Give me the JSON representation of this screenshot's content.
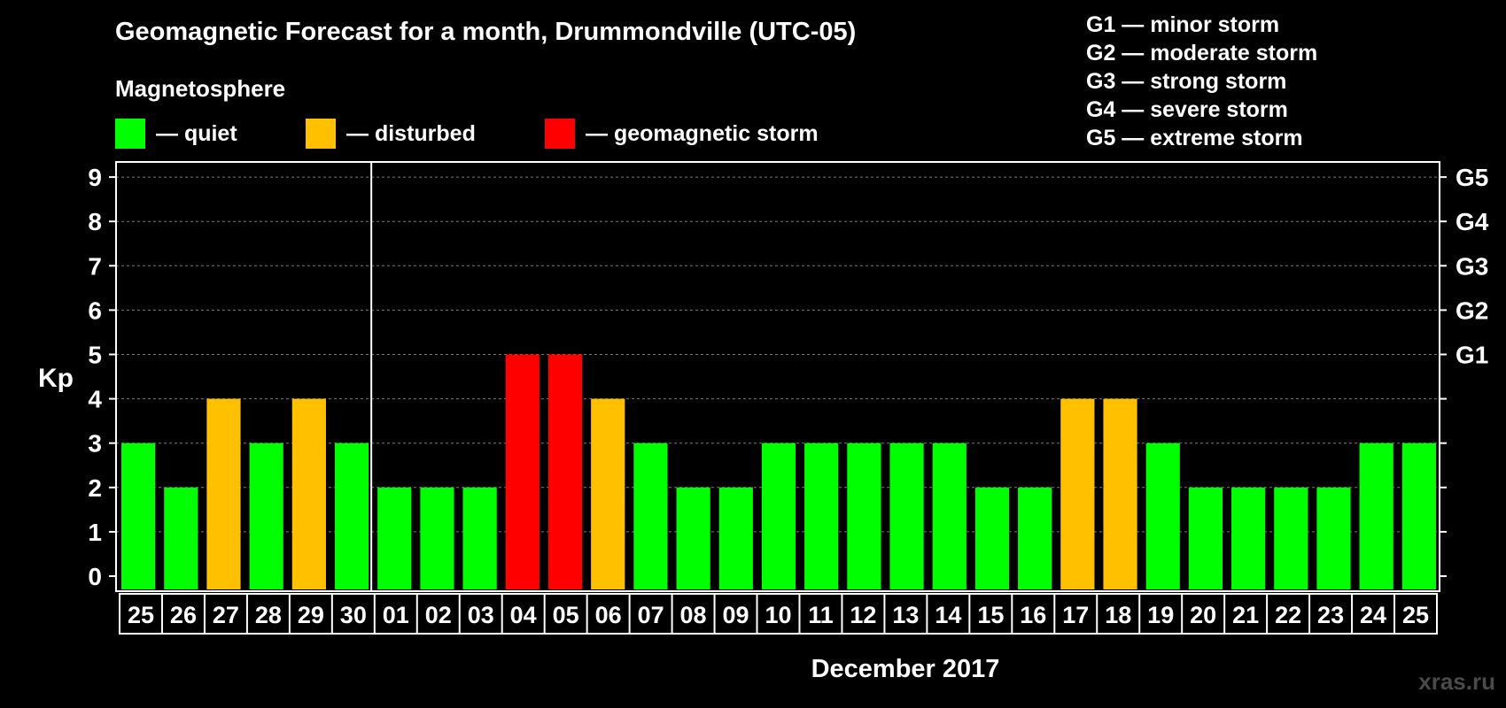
{
  "title": "Geomagnetic Forecast for a month, Drummondville (UTC-05)",
  "subtitle": "Magnetosphere",
  "legend": [
    {
      "label": "— quiet",
      "color": "#00ff00"
    },
    {
      "label": "— disturbed",
      "color": "#ffc000"
    },
    {
      "label": "— geomagnetic storm",
      "color": "#ff0000"
    }
  ],
  "g_scale": [
    "G1 — minor storm",
    "G2 — moderate storm",
    "G3 — strong storm",
    "G4 — severe storm",
    "G5 — extreme storm"
  ],
  "watermark": "xras.ru",
  "chart_data": {
    "type": "bar",
    "title": "Geomagnetic Forecast for a month, Drummondville (UTC-05)",
    "xlabel": "December 2017",
    "ylabel": "Kp",
    "ylim": [
      0,
      9
    ],
    "yticks": [
      0,
      1,
      2,
      3,
      4,
      5,
      6,
      7,
      8,
      9
    ],
    "right_axis_labels": [
      {
        "kp": 5,
        "label": "G1"
      },
      {
        "kp": 6,
        "label": "G2"
      },
      {
        "kp": 7,
        "label": "G3"
      },
      {
        "kp": 8,
        "label": "G4"
      },
      {
        "kp": 9,
        "label": "G5"
      }
    ],
    "grid": true,
    "month_boundary_after": "30",
    "categories": [
      "25",
      "26",
      "27",
      "28",
      "29",
      "30",
      "01",
      "02",
      "03",
      "04",
      "05",
      "06",
      "07",
      "08",
      "09",
      "10",
      "11",
      "12",
      "13",
      "14",
      "15",
      "16",
      "17",
      "18",
      "19",
      "20",
      "21",
      "22",
      "23",
      "24",
      "25"
    ],
    "values": [
      3,
      2,
      4,
      3,
      4,
      3,
      2,
      2,
      2,
      5,
      5,
      4,
      3,
      2,
      2,
      3,
      3,
      3,
      3,
      3,
      2,
      2,
      4,
      4,
      3,
      2,
      2,
      2,
      2,
      3,
      3
    ],
    "colors": {
      "quiet": "#00ff00",
      "disturbed": "#ffc000",
      "storm": "#ff0000"
    }
  }
}
